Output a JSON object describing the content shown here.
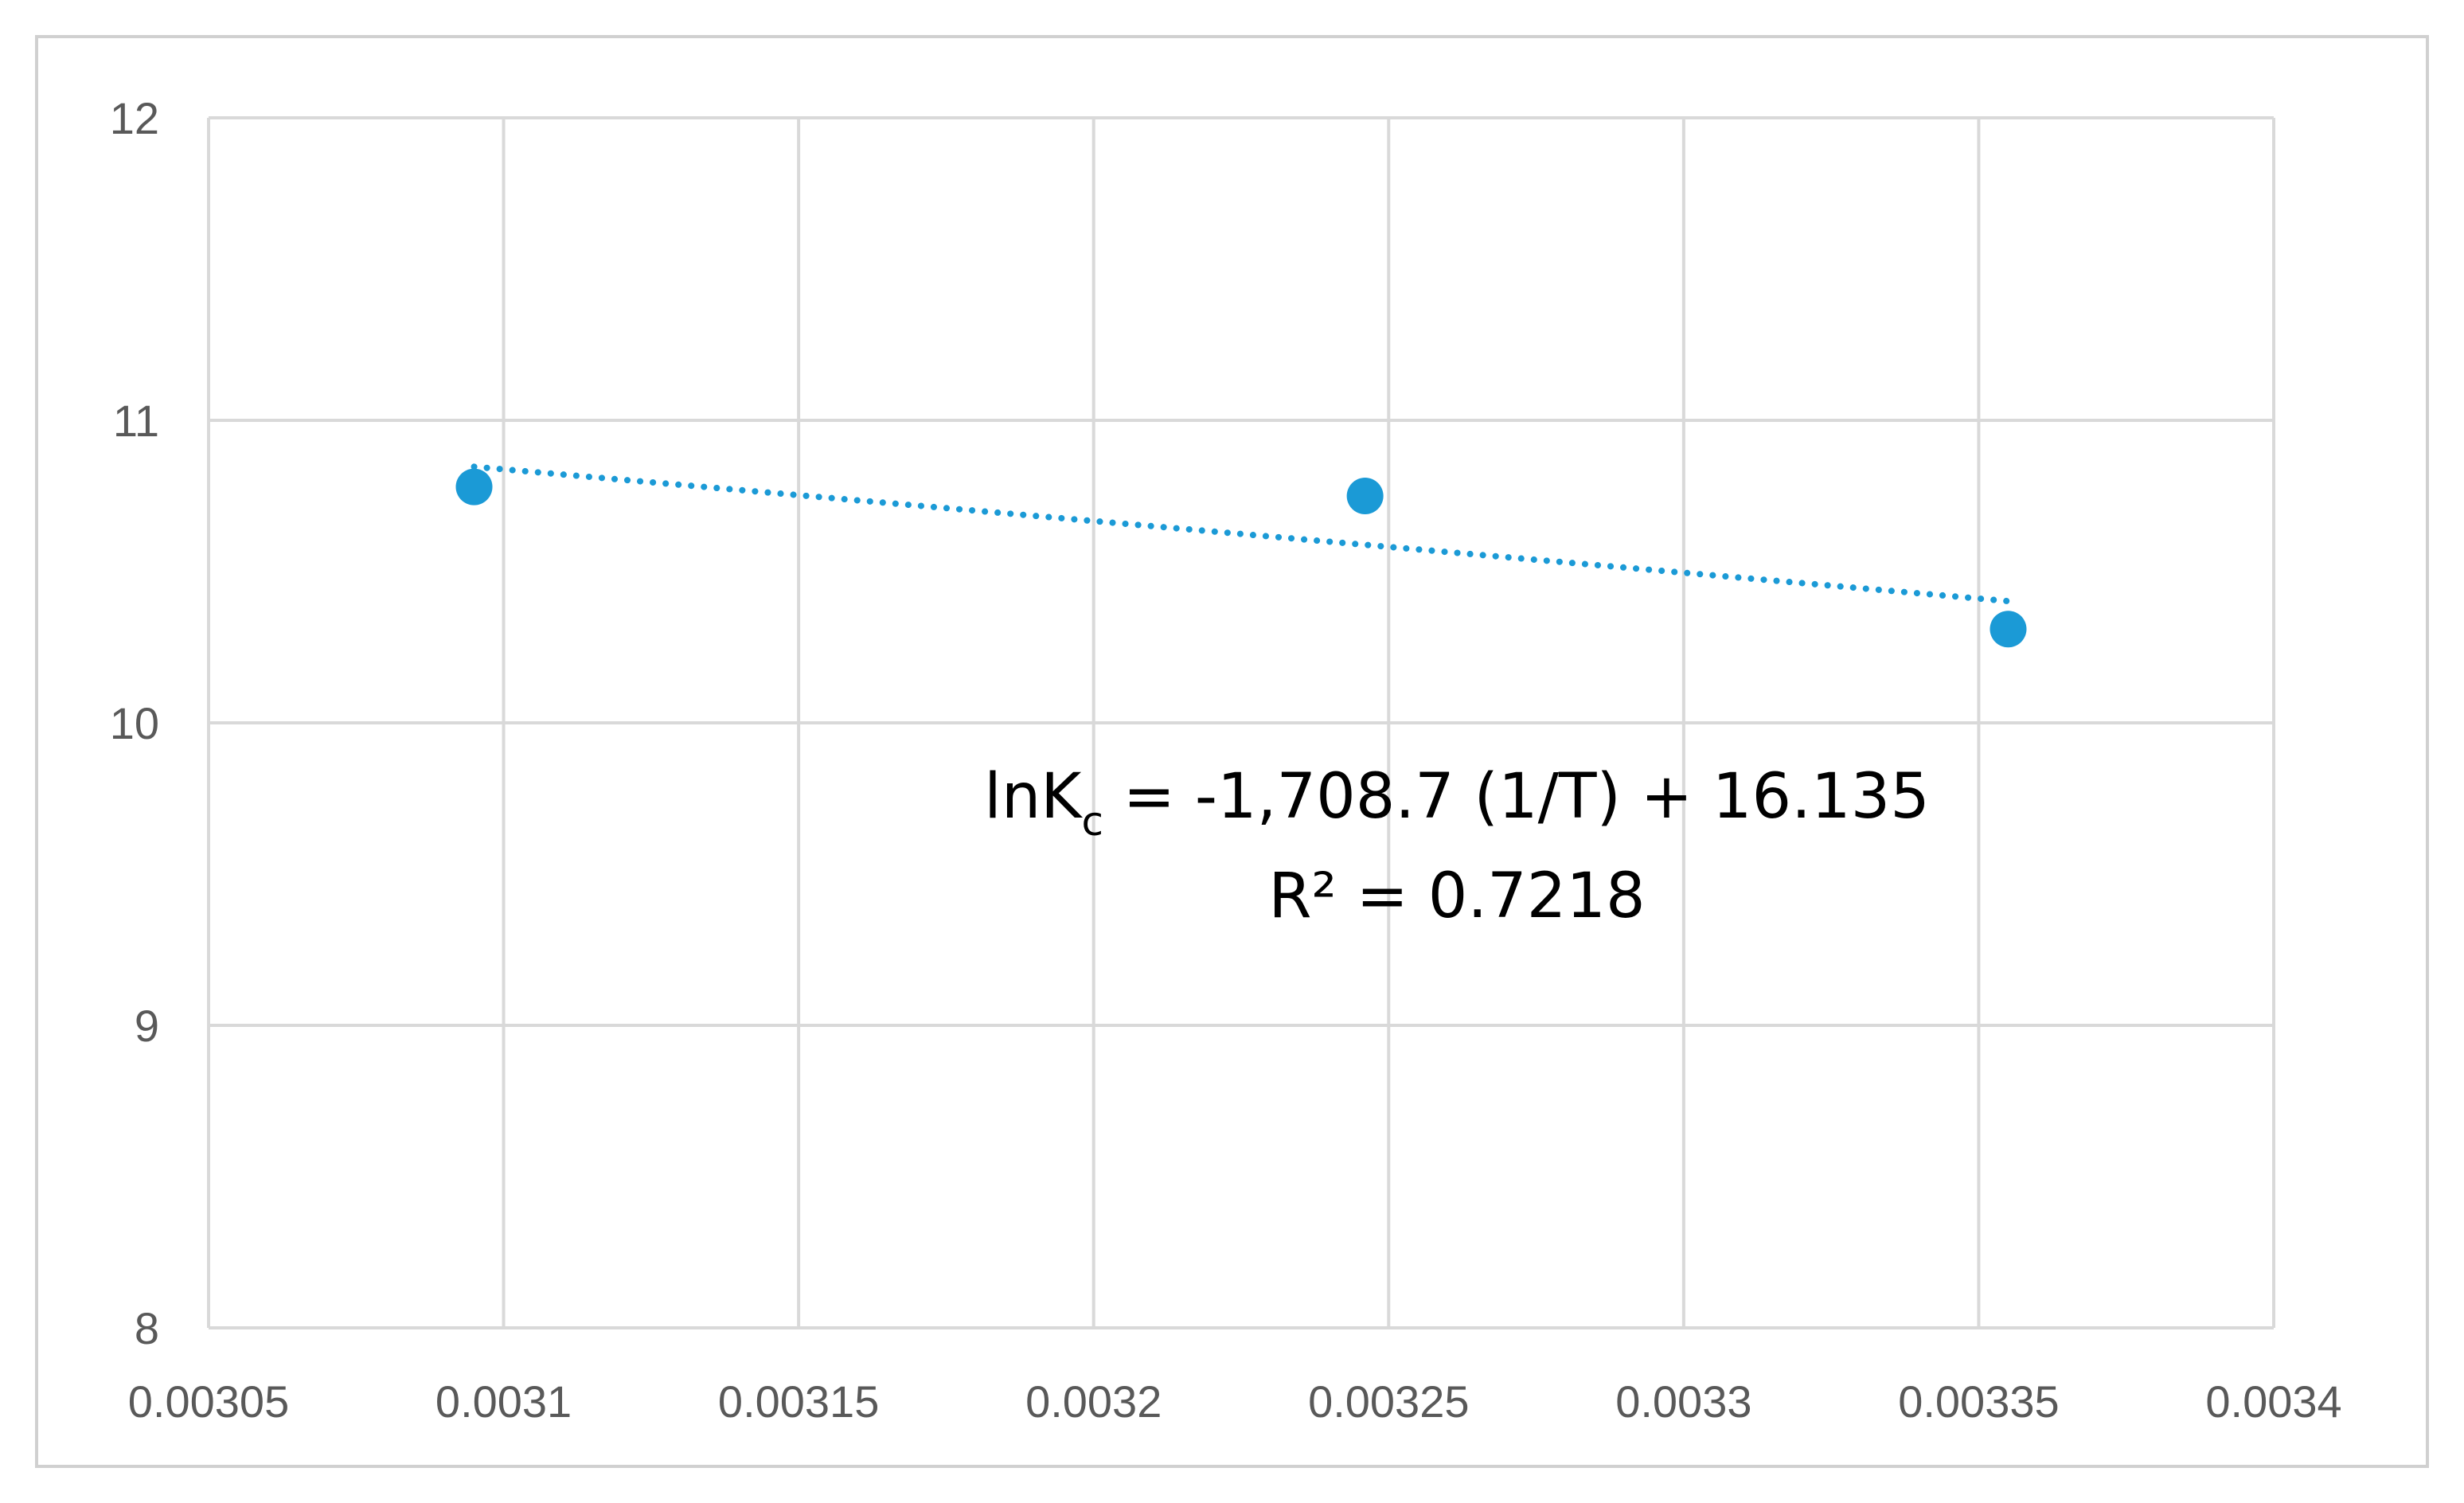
{
  "chart_data": {
    "type": "scatter",
    "x_ticks": [
      "0.00305",
      "0.0031",
      "0.00315",
      "0.0032",
      "0.00325",
      "0.0033",
      "0.00335",
      "0.0034"
    ],
    "y_ticks": [
      "8",
      "9",
      "10",
      "11",
      "12"
    ],
    "xlim": [
      0.00305,
      0.0034
    ],
    "ylim": [
      8,
      12
    ],
    "grid": true,
    "series": [
      {
        "points": [
          {
            "x": 0.003095,
            "y": 10.78
          },
          {
            "x": 0.003246,
            "y": 10.75
          },
          {
            "x": 0.003355,
            "y": 10.31
          }
        ],
        "color": "#1b9ad6",
        "trendline": {
          "style": "dotted",
          "slope": -1708.7,
          "intercept": 16.135,
          "x_range": [
            0.003095,
            0.003355
          ]
        }
      }
    ],
    "annotation": {
      "equation_pre": "lnK",
      "equation_sub": "c",
      "equation_post": " = -1,708.7 (1/T) + 16.135",
      "r_squared": "R² = 0.7218"
    }
  }
}
